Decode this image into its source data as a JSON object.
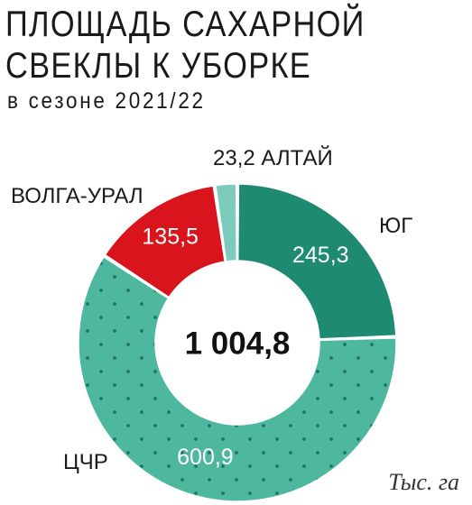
{
  "header": {
    "title_line1": "ПЛОЩАДЬ САХАРНОЙ",
    "title_line2": "СВЕКЛЫ К УБОРКЕ",
    "subtitle": "в сезоне 2021/22"
  },
  "unit": "Тыс. га",
  "chart_data": {
    "type": "pie",
    "variant": "donut",
    "title": "ПЛОЩАДЬ САХАРНОЙ СВЕКЛЫ К УБОРКЕ",
    "subtitle": "в сезоне 2021/22",
    "unit": "Тыс. га",
    "total": "1 004,8",
    "slices": [
      {
        "name": "ЮГ",
        "value": 245.3,
        "label": "245,3",
        "color": "#1e8a72",
        "pattern": "none"
      },
      {
        "name": "ЦЧР",
        "value": 600.9,
        "label": "600,9",
        "color": "#4db89e",
        "pattern": "dots"
      },
      {
        "name": "ВОЛГА-УРАЛ",
        "value": 135.5,
        "label": "135,5",
        "color": "#d9141c",
        "pattern": "none"
      },
      {
        "name": "АЛТАЙ",
        "value": 23.2,
        "label": "23,2",
        "color": "#7ccbbc",
        "pattern": "none"
      }
    ]
  }
}
